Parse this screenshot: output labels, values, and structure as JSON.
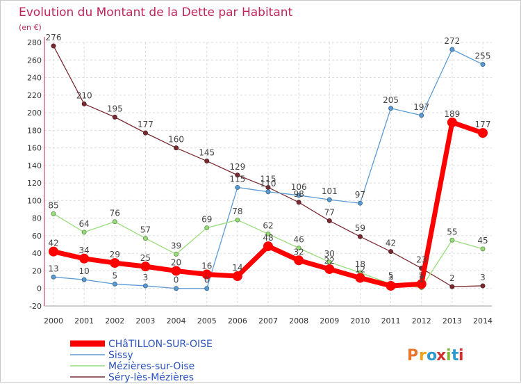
{
  "chart_data": {
    "type": "line",
    "title": "Evolution du Montant de la Dette par Habitant",
    "ylabel": "(en €)",
    "xlabel": "",
    "ylim": [
      -20,
      280
    ],
    "yticks": [
      -20,
      0,
      20,
      40,
      60,
      80,
      100,
      120,
      140,
      160,
      180,
      200,
      220,
      240,
      260,
      280
    ],
    "x": [
      "2000",
      "2001",
      "2002",
      "2003",
      "2004",
      "2005",
      "2006",
      "2007",
      "2008",
      "2009",
      "2010",
      "2011",
      "2012",
      "2013",
      "2014"
    ],
    "grid": true,
    "legend_position": "bottom-left",
    "series": [
      {
        "name": "Séry-lès-Mézières",
        "color": "#7b2c32",
        "values": [
          276,
          210,
          195,
          177,
          160,
          145,
          129,
          115,
          98,
          77,
          59,
          42,
          23,
          2,
          3
        ]
      },
      {
        "name": "Sissy",
        "color": "#5b9bd5",
        "values": [
          13,
          10,
          5,
          3,
          0,
          0,
          115,
          110,
          106,
          101,
          97,
          205,
          197,
          272,
          255
        ]
      },
      {
        "name": "Mézières-sur-Oise",
        "color": "#99dd7a",
        "values": [
          85,
          64,
          76,
          57,
          39,
          69,
          78,
          62,
          46,
          30,
          18,
          5,
          1,
          55,
          45
        ]
      },
      {
        "name": "CHâTILLON-SUR-OISE",
        "color": "#ff0000",
        "values": [
          42,
          34,
          29,
          25,
          20,
          16,
          14,
          48,
          32,
          22,
          12,
          3,
          5,
          189,
          177
        ]
      }
    ]
  },
  "legend": {
    "entries": [
      "CHâTILLON-SUR-OISE",
      "Sissy",
      "Mézières-sur-Oise",
      "Séry-lès-Mézières"
    ]
  },
  "branding": {
    "logo_text": "Proxiti"
  }
}
